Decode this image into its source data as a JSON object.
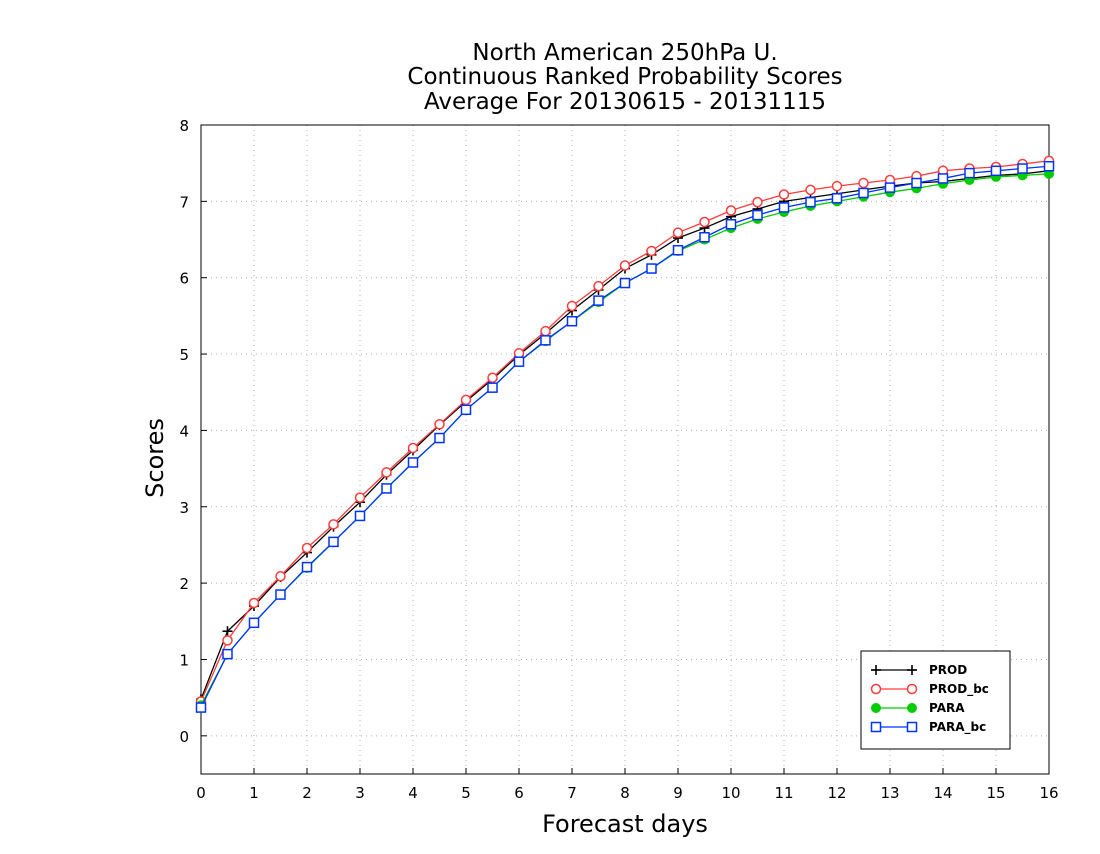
{
  "chart_data": {
    "type": "line",
    "title": [
      "North American 250hPa U.",
      "Continuous Ranked Probability Scores",
      "Average For 20130615 - 20131115"
    ],
    "xlabel": "Forecast days",
    "ylabel": "Scores",
    "xlim": [
      0,
      16
    ],
    "ylim": [
      -0.5,
      8
    ],
    "xticks": [
      0,
      1,
      2,
      3,
      4,
      5,
      6,
      7,
      8,
      9,
      10,
      11,
      12,
      13,
      14,
      15,
      16
    ],
    "yticks": [
      0,
      1,
      2,
      3,
      4,
      5,
      6,
      7,
      8
    ],
    "grid": true,
    "legend_position": "bottom-right",
    "x": [
      0,
      0.5,
      1,
      1.5,
      2,
      2.5,
      3,
      3.5,
      4,
      4.5,
      5,
      5.5,
      6,
      6.5,
      7,
      7.5,
      8,
      8.5,
      9,
      9.5,
      10,
      10.5,
      11,
      11.5,
      12,
      12.5,
      13,
      13.5,
      14,
      14.5,
      15,
      15.5,
      16
    ],
    "series": [
      {
        "name": "PROD",
        "color": "#000000",
        "marker": "plus",
        "values": [
          0.48,
          1.37,
          1.7,
          2.08,
          2.4,
          2.74,
          3.06,
          3.42,
          3.74,
          4.07,
          4.38,
          4.67,
          4.99,
          5.27,
          5.57,
          5.84,
          6.12,
          6.3,
          6.52,
          6.65,
          6.8,
          6.9,
          7.0,
          7.05,
          7.1,
          7.15,
          7.2,
          7.24,
          7.26,
          7.3,
          7.34,
          7.36,
          7.4
        ]
      },
      {
        "name": "PROD_bc",
        "color": "#ff3b3b",
        "marker": "circle-open",
        "values": [
          0.45,
          1.25,
          1.74,
          2.09,
          2.46,
          2.77,
          3.12,
          3.45,
          3.77,
          4.08,
          4.4,
          4.69,
          5.01,
          5.3,
          5.63,
          5.89,
          6.16,
          6.35,
          6.59,
          6.73,
          6.88,
          6.99,
          7.09,
          7.15,
          7.2,
          7.24,
          7.28,
          7.33,
          7.4,
          7.43,
          7.45,
          7.49,
          7.53
        ]
      },
      {
        "name": "PARA",
        "color": "#00cc00",
        "marker": "circle-filled",
        "values": [
          0.4,
          1.07,
          1.48,
          1.85,
          2.2,
          2.54,
          2.88,
          3.24,
          3.58,
          3.9,
          4.27,
          4.56,
          4.9,
          5.17,
          5.43,
          5.68,
          5.93,
          6.12,
          6.35,
          6.5,
          6.65,
          6.77,
          6.86,
          6.94,
          7.0,
          7.06,
          7.12,
          7.17,
          7.23,
          7.28,
          7.32,
          7.34,
          7.36
        ]
      },
      {
        "name": "PARA_bc",
        "color": "#0033ff",
        "marker": "square-open",
        "values": [
          0.37,
          1.07,
          1.48,
          1.85,
          2.21,
          2.54,
          2.88,
          3.24,
          3.58,
          3.9,
          4.27,
          4.56,
          4.9,
          5.18,
          5.43,
          5.7,
          5.93,
          6.12,
          6.36,
          6.53,
          6.7,
          6.82,
          6.92,
          6.99,
          7.04,
          7.11,
          7.18,
          7.24,
          7.3,
          7.37,
          7.4,
          7.43,
          7.46
        ]
      }
    ]
  }
}
